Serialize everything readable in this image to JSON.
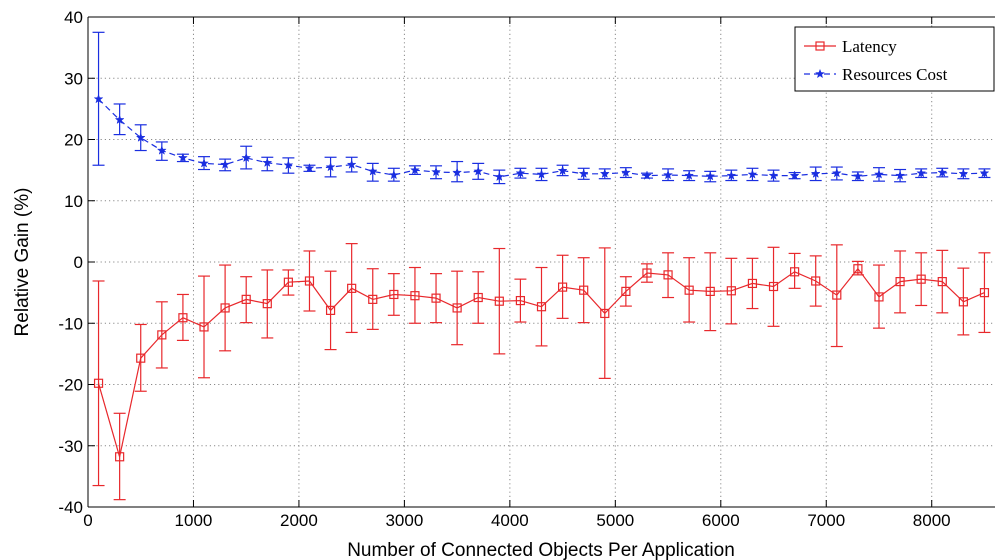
{
  "chart_data": {
    "type": "line",
    "title": "",
    "xlabel": "Number of Connected Objects Per Application",
    "ylabel": "Relative Gain (%)",
    "xlim": [
      0,
      8600
    ],
    "ylim": [
      -40,
      40
    ],
    "xticks": [
      0,
      1000,
      2000,
      3000,
      4000,
      5000,
      6000,
      7000,
      8000
    ],
    "yticks": [
      -40,
      -30,
      -20,
      -10,
      0,
      10,
      20,
      30,
      40
    ],
    "grid": true,
    "legend_position": "top-right",
    "x": [
      100,
      300,
      500,
      700,
      900,
      1100,
      1300,
      1500,
      1700,
      1900,
      2100,
      2300,
      2500,
      2700,
      2900,
      3100,
      3300,
      3500,
      3700,
      3900,
      4100,
      4300,
      4500,
      4700,
      4900,
      5100,
      5300,
      5500,
      5700,
      5900,
      6100,
      6300,
      6500,
      6700,
      6900,
      7100,
      7300,
      7500,
      7700,
      7900,
      8100,
      8300,
      8500
    ],
    "series": [
      {
        "name": "Latency",
        "color": "#e8282c",
        "marker": "square",
        "line_style": "solid",
        "values": [
          -19.8,
          -31.8,
          -15.7,
          -11.9,
          -9.1,
          -10.6,
          -7.5,
          -6.1,
          -6.8,
          -3.3,
          -3.1,
          -7.9,
          -4.3,
          -6.1,
          -5.3,
          -5.5,
          -5.9,
          -7.5,
          -5.8,
          -6.4,
          -6.3,
          -7.3,
          -4.1,
          -4.6,
          -8.4,
          -4.8,
          -1.8,
          -2.1,
          -4.6,
          -4.8,
          -4.7,
          -3.5,
          -4.0,
          -1.6,
          -3.1,
          -5.4,
          -1.1,
          -5.7,
          -3.2,
          -2.8,
          -3.2,
          -6.5,
          -5.0
        ],
        "error_low": [
          -36.5,
          -38.8,
          -21.1,
          -17.3,
          -12.8,
          -18.9,
          -14.5,
          -9.9,
          -12.4,
          -5.4,
          -8.0,
          -14.3,
          -11.5,
          -11.0,
          -8.7,
          -10.0,
          -9.9,
          -13.5,
          -10.0,
          -15.0,
          -9.8,
          -13.7,
          -9.2,
          -9.9,
          -19.0,
          -7.2,
          -3.3,
          -5.8,
          -9.8,
          -11.2,
          -10.1,
          -7.6,
          -10.5,
          -4.3,
          -7.2,
          -13.8,
          -2.1,
          -10.8,
          -8.3,
          -7.1,
          -8.3,
          -11.9,
          -11.5
        ],
        "error_high": [
          -3.1,
          -24.7,
          -10.2,
          -6.5,
          -5.3,
          -2.3,
          -0.5,
          -2.4,
          -1.3,
          -1.3,
          1.8,
          -1.5,
          3.0,
          -1.1,
          -1.9,
          -0.9,
          -1.9,
          -1.5,
          -1.6,
          2.2,
          -2.8,
          -0.9,
          1.1,
          0.7,
          2.3,
          -2.4,
          -0.3,
          1.5,
          0.7,
          1.5,
          0.6,
          0.6,
          2.4,
          1.4,
          1.0,
          2.8,
          0.1,
          -0.5,
          1.8,
          1.5,
          1.9,
          -1.0,
          1.5
        ]
      },
      {
        "name": "Resources Cost",
        "color": "#1a2ee0",
        "marker": "star",
        "line_style": "dashed",
        "values": [
          26.6,
          23.2,
          20.3,
          18.2,
          17.0,
          16.1,
          15.9,
          17.0,
          16.2,
          15.8,
          15.3,
          15.5,
          15.9,
          14.8,
          14.2,
          15.0,
          14.7,
          14.6,
          14.8,
          13.9,
          14.5,
          14.3,
          14.9,
          14.4,
          14.4,
          14.6,
          14.1,
          14.2,
          14.1,
          14.0,
          14.1,
          14.3,
          14.1,
          14.1,
          14.4,
          14.5,
          14.0,
          14.3,
          14.1,
          14.5,
          14.6,
          14.4,
          14.5
        ],
        "error_low": [
          15.8,
          20.8,
          18.2,
          16.6,
          16.4,
          15.1,
          14.9,
          15.2,
          14.9,
          14.5,
          14.8,
          13.9,
          14.7,
          13.2,
          13.2,
          14.3,
          13.6,
          13.1,
          13.5,
          12.8,
          13.7,
          13.3,
          14.1,
          13.5,
          13.6,
          13.8,
          13.7,
          13.3,
          13.3,
          13.1,
          13.3,
          13.3,
          13.2,
          13.6,
          13.3,
          13.4,
          13.3,
          13.2,
          13.1,
          13.8,
          13.9,
          13.6,
          13.8
        ],
        "error_high": [
          37.5,
          25.8,
          22.4,
          19.6,
          17.6,
          17.2,
          16.8,
          18.9,
          17.1,
          17.0,
          15.8,
          17.1,
          17.1,
          16.1,
          15.3,
          15.7,
          15.7,
          16.4,
          16.1,
          15.0,
          15.3,
          15.3,
          15.8,
          15.3,
          15.2,
          15.4,
          14.5,
          15.2,
          14.9,
          14.8,
          15.0,
          15.3,
          15.0,
          14.6,
          15.5,
          15.5,
          14.7,
          15.4,
          15.1,
          15.2,
          15.3,
          15.2,
          15.2
        ]
      }
    ]
  }
}
